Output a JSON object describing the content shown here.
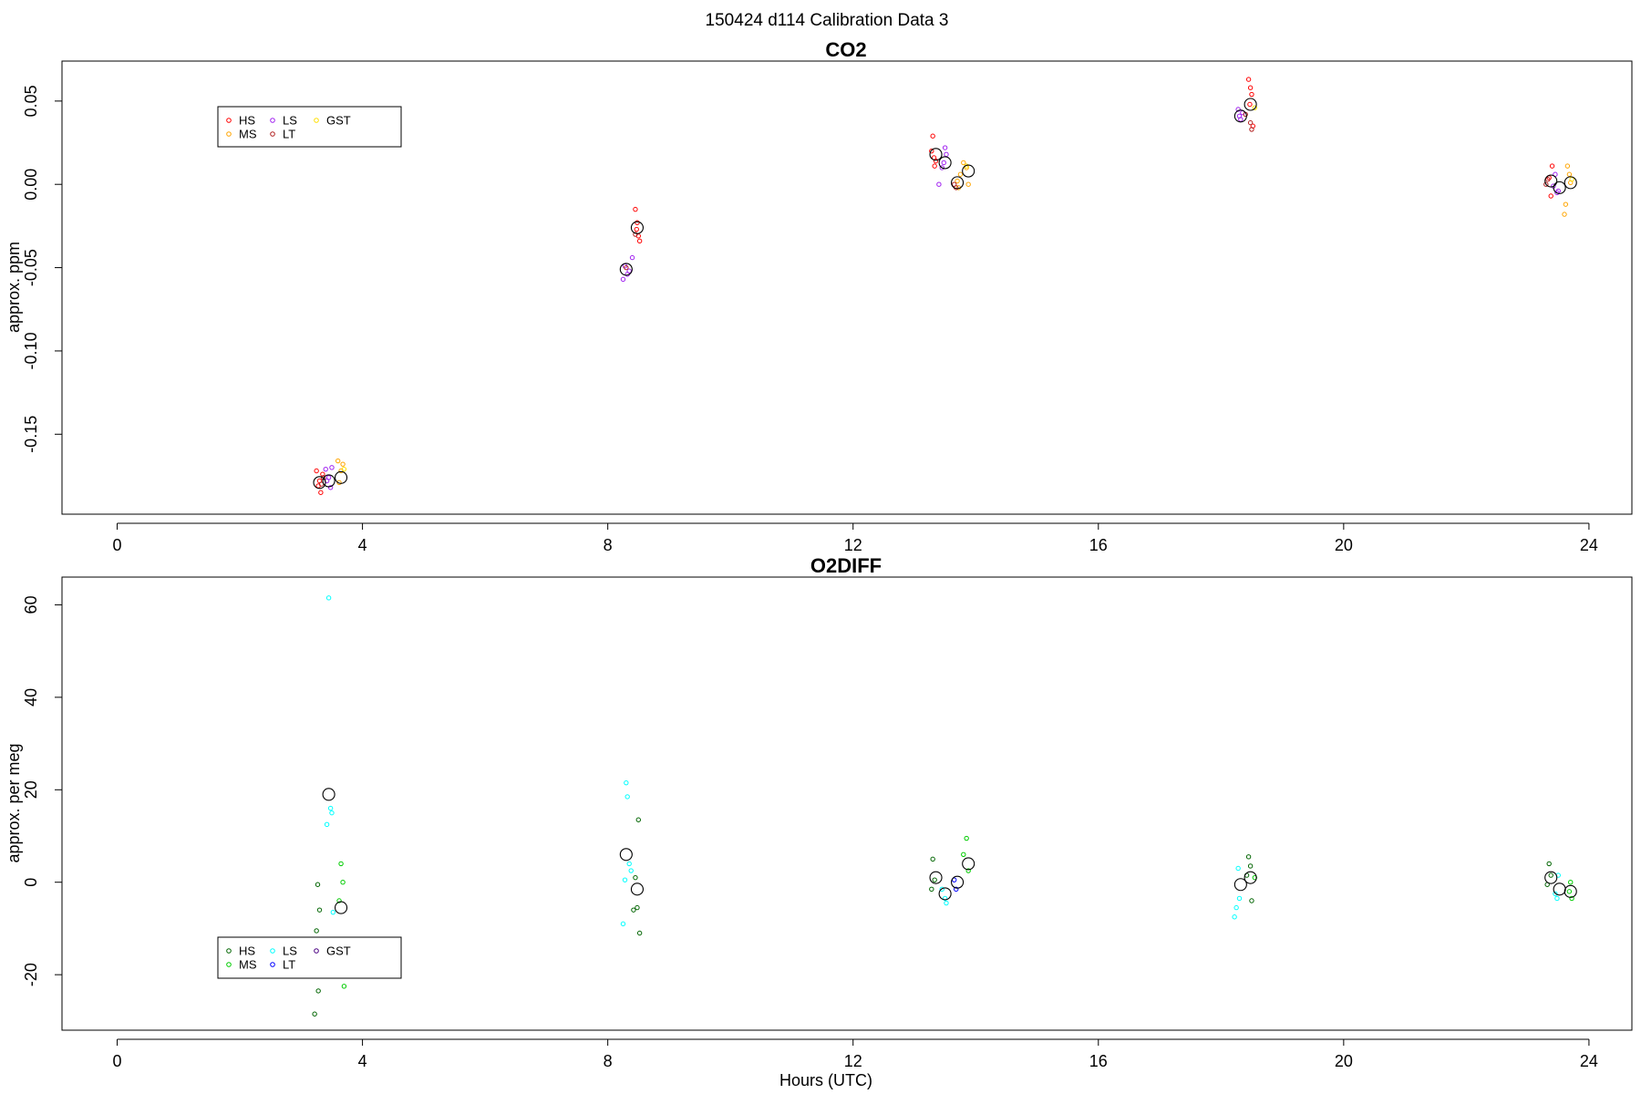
{
  "figure_title": "150424   d114   Calibration Data 3",
  "chart_data": [
    {
      "type": "scatter",
      "title": "CO2",
      "xlabel": "",
      "ylabel": "approx. ppm",
      "xlim": [
        -0.9,
        24.7
      ],
      "ylim": [
        -0.198,
        0.074
      ],
      "xticks": [
        0,
        4,
        8,
        12,
        16,
        20,
        24
      ],
      "yticks": [
        -0.15,
        -0.1,
        -0.05,
        0.0,
        0.05
      ],
      "ytick_labels": [
        "-0.15",
        "-0.10",
        "-0.05",
        "0.00",
        "0.05"
      ],
      "legend_position": "top-left",
      "series": [
        {
          "name": "HS",
          "color": "#ff0000",
          "points": [
            [
              3.25,
              -0.172
            ],
            [
              3.3,
              -0.178
            ],
            [
              3.32,
              -0.185
            ],
            [
              3.35,
              -0.174
            ],
            [
              3.28,
              -0.181
            ],
            [
              8.45,
              -0.015
            ],
            [
              8.48,
              -0.023
            ],
            [
              8.5,
              -0.031
            ],
            [
              8.52,
              -0.034
            ],
            [
              8.47,
              -0.027
            ],
            [
              13.3,
              0.029
            ],
            [
              13.32,
              0.016
            ],
            [
              13.35,
              0.014
            ],
            [
              13.28,
              0.02
            ],
            [
              13.33,
              0.011
            ],
            [
              18.45,
              0.063
            ],
            [
              18.48,
              0.058
            ],
            [
              18.5,
              0.054
            ],
            [
              18.52,
              0.035
            ],
            [
              18.47,
              0.048
            ],
            [
              23.4,
              0.011
            ],
            [
              23.35,
              0.004
            ],
            [
              23.38,
              -0.007
            ]
          ]
        },
        {
          "name": "MS",
          "color": "#ffa500",
          "points": [
            [
              3.6,
              -0.166
            ],
            [
              3.65,
              -0.172
            ],
            [
              3.62,
              -0.179
            ],
            [
              3.68,
              -0.168
            ],
            [
              13.7,
              0.002
            ],
            [
              13.75,
              0.006
            ],
            [
              13.72,
              -0.002
            ],
            [
              13.8,
              0.013
            ],
            [
              13.85,
              0.01
            ],
            [
              13.88,
              0.0
            ],
            [
              23.65,
              0.011
            ],
            [
              23.68,
              0.006
            ],
            [
              23.62,
              -0.012
            ],
            [
              23.6,
              -0.018
            ],
            [
              23.7,
              0.001
            ]
          ]
        },
        {
          "name": "LS",
          "color": "#a020f0",
          "points": [
            [
              3.4,
              -0.171
            ],
            [
              3.45,
              -0.176
            ],
            [
              3.48,
              -0.182
            ],
            [
              3.5,
              -0.17
            ],
            [
              3.42,
              -0.178
            ],
            [
              8.28,
              -0.049
            ],
            [
              8.32,
              -0.054
            ],
            [
              8.35,
              -0.052
            ],
            [
              8.4,
              -0.044
            ],
            [
              8.25,
              -0.057
            ],
            [
              13.5,
              0.022
            ],
            [
              13.52,
              0.018
            ],
            [
              13.48,
              0.013
            ],
            [
              13.45,
              0.01
            ],
            [
              13.4,
              0.0
            ],
            [
              18.28,
              0.045
            ],
            [
              18.3,
              0.041
            ],
            [
              18.32,
              0.039
            ],
            [
              18.35,
              0.043
            ],
            [
              23.45,
              0.006
            ],
            [
              23.5,
              -0.004
            ],
            [
              23.48,
              -0.005
            ],
            [
              23.42,
              -0.001
            ]
          ]
        },
        {
          "name": "LT",
          "color": "#b22222",
          "points": [
            [
              3.33,
              -0.18
            ],
            [
              3.36,
              -0.176
            ],
            [
              8.3,
              -0.05
            ],
            [
              8.45,
              -0.03
            ],
            [
              13.65,
              0.0
            ],
            [
              13.68,
              -0.002
            ],
            [
              18.4,
              0.042
            ],
            [
              18.48,
              0.037
            ],
            [
              18.5,
              0.033
            ],
            [
              23.3,
              0.0
            ],
            [
              23.33,
              0.003
            ]
          ]
        },
        {
          "name": "GST",
          "color": "#ffe000",
          "points": [
            [
              3.7,
              -0.171
            ],
            [
              13.85,
              0.011
            ],
            [
              18.55,
              0.046
            ],
            [
              23.72,
              0.003
            ]
          ]
        },
        {
          "name": "",
          "color": "#000000",
          "marker": "large-circle",
          "points": [
            [
              3.3,
              -0.179
            ],
            [
              3.45,
              -0.178
            ],
            [
              3.65,
              -0.176
            ],
            [
              8.3,
              -0.051
            ],
            [
              8.48,
              -0.026
            ],
            [
              13.35,
              0.018
            ],
            [
              13.5,
              0.013
            ],
            [
              13.7,
              0.001
            ],
            [
              13.88,
              0.008
            ],
            [
              18.32,
              0.041
            ],
            [
              18.48,
              0.048
            ],
            [
              23.38,
              0.002
            ],
            [
              23.52,
              -0.002
            ],
            [
              23.7,
              0.001
            ]
          ]
        }
      ]
    },
    {
      "type": "scatter",
      "title": "O2DIFF",
      "xlabel": "Hours (UTC)",
      "ylabel": "approx. per meg",
      "xlim": [
        -0.9,
        24.7
      ],
      "ylim": [
        -32,
        66
      ],
      "xticks": [
        0,
        4,
        8,
        12,
        16,
        20,
        24
      ],
      "yticks": [
        -20,
        0,
        20,
        40,
        60
      ],
      "ytick_labels": [
        "-20",
        "0",
        "20",
        "40",
        "60"
      ],
      "legend_position": "bottom-left",
      "series": [
        {
          "name": "HS",
          "color": "#006400",
          "points": [
            [
              3.22,
              -28.5
            ],
            [
              3.28,
              -23.5
            ],
            [
              3.25,
              -10.5
            ],
            [
              3.3,
              -6.0
            ],
            [
              3.27,
              -0.5
            ],
            [
              3.32,
              -13.5
            ],
            [
              8.5,
              13.5
            ],
            [
              8.45,
              1.0
            ],
            [
              8.48,
              -5.5
            ],
            [
              8.42,
              -6.0
            ],
            [
              8.52,
              -11.0
            ],
            [
              13.3,
              5.0
            ],
            [
              13.33,
              0.5
            ],
            [
              13.28,
              -1.5
            ],
            [
              18.45,
              5.5
            ],
            [
              18.48,
              3.5
            ],
            [
              18.42,
              1.5
            ],
            [
              18.5,
              -4.0
            ],
            [
              23.35,
              4.0
            ],
            [
              23.38,
              1.5
            ],
            [
              23.32,
              -0.5
            ]
          ]
        },
        {
          "name": "MS",
          "color": "#00cc00",
          "points": [
            [
              3.65,
              4.0
            ],
            [
              3.68,
              0.0
            ],
            [
              3.62,
              -4.0
            ],
            [
              3.7,
              -22.5
            ],
            [
              13.85,
              9.5
            ],
            [
              13.8,
              6.0
            ],
            [
              13.88,
              2.5
            ],
            [
              18.55,
              1.0
            ],
            [
              23.7,
              0.0
            ],
            [
              23.72,
              -3.5
            ],
            [
              23.68,
              -2.0
            ]
          ]
        },
        {
          "name": "LS",
          "color": "#00ffff",
          "points": [
            [
              3.45,
              61.5
            ],
            [
              3.48,
              16.0
            ],
            [
              3.5,
              15.0
            ],
            [
              3.42,
              12.5
            ],
            [
              3.52,
              -6.5
            ],
            [
              8.3,
              21.5
            ],
            [
              8.32,
              18.5
            ],
            [
              8.35,
              4.0
            ],
            [
              8.28,
              0.5
            ],
            [
              8.38,
              2.5
            ],
            [
              8.25,
              -9.0
            ],
            [
              13.45,
              -1.5
            ],
            [
              13.5,
              -3.5
            ],
            [
              13.52,
              -4.5
            ],
            [
              18.28,
              3.0
            ],
            [
              18.3,
              -3.5
            ],
            [
              18.25,
              -5.5
            ],
            [
              18.22,
              -7.5
            ],
            [
              23.5,
              1.5
            ],
            [
              23.45,
              -2.5
            ],
            [
              23.48,
              -3.5
            ]
          ]
        },
        {
          "name": "LT",
          "color": "#0000ff",
          "points": [
            [
              13.65,
              0.5
            ],
            [
              13.68,
              -1.5
            ]
          ]
        },
        {
          "name": "GST",
          "color": "#4b0082",
          "points": []
        },
        {
          "name": "",
          "color": "#000000",
          "marker": "large-circle",
          "points": [
            [
              3.45,
              19.0
            ],
            [
              3.65,
              -5.5
            ],
            [
              8.3,
              6.0
            ],
            [
              8.48,
              -1.5
            ],
            [
              13.35,
              1.0
            ],
            [
              13.5,
              -2.5
            ],
            [
              13.7,
              0.0
            ],
            [
              13.88,
              4.0
            ],
            [
              18.32,
              -0.5
            ],
            [
              18.48,
              1.0
            ],
            [
              23.38,
              1.0
            ],
            [
              23.52,
              -1.5
            ],
            [
              23.7,
              -2.0
            ]
          ]
        }
      ]
    }
  ]
}
